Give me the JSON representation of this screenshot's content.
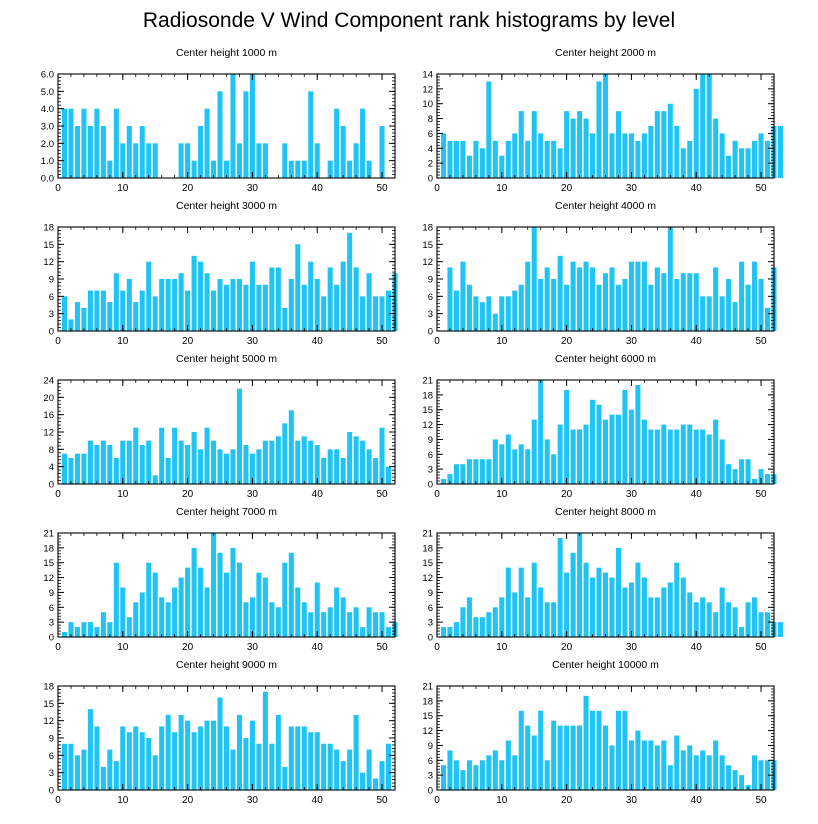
{
  "title": "Radiosonde V Wind Component rank histograms by level",
  "colors": {
    "bar": "#1fc4f4",
    "axis": "#000000"
  },
  "chart_data": [
    {
      "type": "bar",
      "title": "Center height 1000 m",
      "xlim": [
        0,
        52
      ],
      "xticks": [
        0,
        10,
        20,
        30,
        40,
        50
      ],
      "ylim": [
        0,
        6
      ],
      "yticks": [
        0,
        1,
        2,
        3,
        4,
        5,
        6
      ],
      "ytick_labels": [
        "0.0",
        "1.0",
        "2.0",
        "3.0",
        "4.0",
        "5.0",
        "6.0"
      ],
      "values": [
        4,
        4,
        3,
        4,
        3,
        4,
        3,
        1,
        4,
        2,
        3,
        2,
        3,
        2,
        2,
        0,
        0,
        0,
        2,
        2,
        1,
        3,
        4,
        1,
        5,
        1,
        6,
        2,
        5,
        6,
        2,
        2,
        0,
        0,
        2,
        1,
        1,
        1,
        5,
        2,
        0,
        1,
        4,
        3,
        1,
        2,
        4,
        1,
        0,
        3,
        0
      ]
    },
    {
      "type": "bar",
      "title": "Center height 2000 m",
      "xlim": [
        0,
        52
      ],
      "xticks": [
        0,
        10,
        20,
        30,
        40,
        50
      ],
      "ylim": [
        0,
        14
      ],
      "yticks": [
        0,
        2,
        4,
        6,
        8,
        10,
        12,
        14
      ],
      "ytick_labels": [
        "0",
        "2",
        "4",
        "6",
        "8",
        "10",
        "12",
        "14"
      ],
      "values": [
        6,
        5,
        5,
        5,
        3,
        5,
        4,
        13,
        5,
        3,
        5,
        6,
        9,
        5,
        9,
        6,
        5,
        5,
        4,
        9,
        8,
        9,
        8,
        6,
        13,
        14,
        6,
        9,
        6,
        6,
        5,
        6,
        7,
        9,
        9,
        10,
        7,
        4,
        5,
        12,
        14,
        14,
        8,
        6,
        3,
        5,
        4,
        4,
        5,
        6,
        5,
        7,
        7
      ]
    },
    {
      "type": "bar",
      "title": "Center height 3000 m",
      "xlim": [
        0,
        52
      ],
      "xticks": [
        0,
        10,
        20,
        30,
        40,
        50
      ],
      "ylim": [
        0,
        18
      ],
      "yticks": [
        0,
        3,
        6,
        9,
        12,
        15,
        18
      ],
      "ytick_labels": [
        "0",
        "3",
        "6",
        "9",
        "12",
        "15",
        "18"
      ],
      "values": [
        6,
        2,
        5,
        4,
        7,
        7,
        7,
        5,
        10,
        7,
        9,
        5,
        7,
        12,
        6,
        9,
        9,
        9,
        10,
        7,
        13,
        12,
        10,
        7,
        9,
        8,
        9,
        9,
        8,
        12,
        8,
        8,
        11,
        11,
        4,
        9,
        15,
        8,
        12,
        9,
        6,
        11,
        8,
        12,
        17,
        11,
        6,
        10,
        6,
        6,
        7,
        10
      ]
    },
    {
      "type": "bar",
      "title": "Center height 4000 m",
      "xlim": [
        0,
        52
      ],
      "xticks": [
        0,
        10,
        20,
        30,
        40,
        50
      ],
      "ylim": [
        0,
        18
      ],
      "yticks": [
        0,
        3,
        6,
        9,
        12,
        15,
        18
      ],
      "ytick_labels": [
        "0",
        "3",
        "6",
        "9",
        "12",
        "15",
        "18"
      ],
      "values": [
        0,
        11,
        7,
        12,
        8,
        6,
        5,
        6,
        3,
        6,
        6,
        7,
        8,
        12,
        18,
        9,
        11,
        9,
        13,
        8,
        12,
        11,
        12,
        11,
        8,
        10,
        11,
        8,
        9,
        12,
        12,
        12,
        8,
        11,
        10,
        18,
        9,
        10,
        10,
        10,
        6,
        6,
        11,
        6,
        9,
        5,
        12,
        8,
        12,
        9,
        4,
        11
      ]
    },
    {
      "type": "bar",
      "title": "Center height 5000 m",
      "xlim": [
        0,
        52
      ],
      "xticks": [
        0,
        10,
        20,
        30,
        40,
        50
      ],
      "ylim": [
        0,
        24
      ],
      "yticks": [
        0,
        4,
        8,
        12,
        16,
        20,
        24
      ],
      "ytick_labels": [
        "0",
        "4",
        "8",
        "12",
        "16",
        "20",
        "24"
      ],
      "values": [
        7,
        6,
        7,
        7,
        10,
        9,
        10,
        9,
        6,
        10,
        10,
        13,
        9,
        10,
        2,
        13,
        6,
        13,
        10,
        9,
        12,
        8,
        13,
        10,
        8,
        7,
        8,
        22,
        9,
        7,
        8,
        10,
        10,
        11,
        14,
        17,
        10,
        11,
        10,
        9,
        6,
        8,
        8,
        6,
        12,
        11,
        10,
        8,
        6,
        13,
        4
      ]
    },
    {
      "type": "bar",
      "title": "Center height 6000 m",
      "xlim": [
        0,
        52
      ],
      "xticks": [
        0,
        10,
        20,
        30,
        40,
        50
      ],
      "ylim": [
        0,
        21
      ],
      "yticks": [
        0,
        3,
        6,
        9,
        12,
        15,
        18,
        21
      ],
      "ytick_labels": [
        "0",
        "3",
        "6",
        "9",
        "12",
        "15",
        "18",
        "21"
      ],
      "values": [
        1,
        2,
        4,
        4,
        5,
        5,
        5,
        5,
        9,
        8,
        10,
        7,
        8,
        7,
        13,
        21,
        9,
        6,
        12,
        19,
        11,
        11,
        12,
        17,
        16,
        13,
        14,
        14,
        19,
        15,
        20,
        13,
        11,
        11,
        12,
        11,
        11,
        12,
        12,
        11,
        11,
        10,
        13,
        9,
        4,
        3,
        5,
        5,
        1,
        3,
        2,
        2
      ]
    },
    {
      "type": "bar",
      "title": "Center height 7000 m",
      "xlim": [
        0,
        52
      ],
      "xticks": [
        0,
        10,
        20,
        30,
        40,
        50
      ],
      "ylim": [
        0,
        21
      ],
      "yticks": [
        0,
        3,
        6,
        9,
        12,
        15,
        18,
        21
      ],
      "ytick_labels": [
        "0",
        "3",
        "6",
        "9",
        "12",
        "15",
        "18",
        "21"
      ],
      "values": [
        1,
        3,
        2,
        3,
        3,
        2,
        5,
        3,
        15,
        10,
        4,
        7,
        9,
        15,
        13,
        8,
        7,
        10,
        12,
        14,
        18,
        14,
        10,
        21,
        17,
        13,
        18,
        15,
        7,
        8,
        13,
        12,
        7,
        6,
        15,
        17,
        10,
        7,
        5,
        11,
        5,
        6,
        10,
        8,
        5,
        6,
        2,
        6,
        5,
        5,
        2,
        3
      ]
    },
    {
      "type": "bar",
      "title": "Center height 8000 m",
      "xlim": [
        0,
        52
      ],
      "xticks": [
        0,
        10,
        20,
        30,
        40,
        50
      ],
      "ylim": [
        0,
        21
      ],
      "yticks": [
        0,
        3,
        6,
        9,
        12,
        15,
        18,
        21
      ],
      "ytick_labels": [
        "0",
        "3",
        "6",
        "9",
        "12",
        "15",
        "18",
        "21"
      ],
      "values": [
        2,
        2,
        3,
        6,
        8,
        4,
        4,
        5,
        6,
        8,
        14,
        9,
        14,
        8,
        15,
        10,
        7,
        7,
        20,
        13,
        17,
        21,
        15,
        12,
        14,
        13,
        12,
        18,
        10,
        11,
        15,
        12,
        8,
        8,
        10,
        11,
        15,
        12,
        9,
        7,
        8,
        7,
        5,
        10,
        7,
        6,
        2,
        7,
        8,
        5,
        5,
        3,
        3
      ]
    },
    {
      "type": "bar",
      "title": "Center height 9000 m",
      "xlim": [
        0,
        52
      ],
      "xticks": [
        0,
        10,
        20,
        30,
        40,
        50
      ],
      "ylim": [
        0,
        18
      ],
      "yticks": [
        0,
        3,
        6,
        9,
        12,
        15,
        18
      ],
      "ytick_labels": [
        "0",
        "3",
        "6",
        "9",
        "12",
        "15",
        "18"
      ],
      "values": [
        8,
        8,
        6,
        7,
        14,
        11,
        4,
        7,
        5,
        11,
        10,
        11,
        10,
        9,
        6,
        11,
        13,
        10,
        13,
        12,
        10,
        11,
        12,
        12,
        16,
        11,
        7,
        13,
        9,
        12,
        8,
        17,
        8,
        13,
        4,
        11,
        11,
        11,
        10,
        10,
        8,
        8,
        7,
        5,
        7,
        13,
        3,
        7,
        2,
        5,
        8
      ]
    },
    {
      "type": "bar",
      "title": "Center height 10000 m",
      "xlim": [
        0,
        52
      ],
      "xticks": [
        0,
        10,
        20,
        30,
        40,
        50
      ],
      "ylim": [
        0,
        21
      ],
      "yticks": [
        0,
        3,
        6,
        9,
        12,
        15,
        18,
        21
      ],
      "ytick_labels": [
        "0",
        "3",
        "6",
        "9",
        "12",
        "15",
        "18",
        "21"
      ],
      "values": [
        5,
        8,
        6,
        4,
        6,
        5,
        6,
        7,
        8,
        6,
        10,
        7,
        16,
        13,
        11,
        16,
        6,
        14,
        13,
        13,
        13,
        13,
        19,
        16,
        16,
        13,
        9,
        16,
        16,
        10,
        12,
        10,
        10,
        9,
        10,
        5,
        11,
        8,
        9,
        7,
        8,
        7,
        10,
        7,
        5,
        4,
        3,
        1,
        7,
        6,
        6,
        6
      ]
    }
  ]
}
